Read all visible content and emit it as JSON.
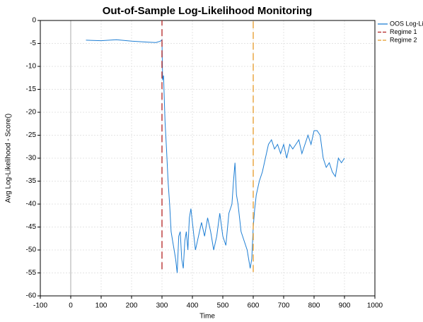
{
  "chart_data": {
    "type": "line",
    "title": "Out-of-Sample Log-Likelihood Monitoring",
    "xlabel": "Time",
    "ylabel": "Avg Log-Likelihood - Score()",
    "xlim": [
      -100,
      1000
    ],
    "xticks": [
      -100,
      0,
      100,
      200,
      300,
      400,
      500,
      600,
      700,
      800,
      900,
      1000
    ],
    "ylim": [
      -60,
      0
    ],
    "yticks": [
      0,
      -5,
      -10,
      -15,
      -20,
      -25,
      -30,
      -35,
      -40,
      -45,
      -50,
      -55,
      -60
    ],
    "grid": true,
    "legend": "outside-right",
    "series": [
      {
        "name": "OOS Log-Li",
        "color": "#1f7fd4",
        "dashed": false,
        "x": [
          50,
          100,
          150,
          200,
          250,
          280,
          295,
          300,
          302,
          305,
          310,
          315,
          320,
          325,
          330,
          335,
          340,
          345,
          350,
          355,
          360,
          365,
          370,
          375,
          380,
          385,
          390,
          395,
          400,
          410,
          420,
          430,
          440,
          450,
          460,
          470,
          480,
          490,
          500,
          510,
          520,
          530,
          535,
          540,
          545,
          550,
          560,
          570,
          580,
          590,
          595,
          600,
          605,
          610,
          620,
          630,
          640,
          650,
          660,
          670,
          680,
          690,
          700,
          710,
          720,
          730,
          740,
          750,
          760,
          770,
          780,
          790,
          800,
          810,
          820,
          830,
          840,
          850,
          860,
          870,
          880,
          890,
          900
        ],
        "values": [
          -4.3,
          -4.4,
          -4.2,
          -4.5,
          -4.7,
          -4.8,
          -4.5,
          -4.2,
          -13,
          -12,
          -22,
          -28,
          -35,
          -40,
          -46,
          -48,
          -50,
          -52,
          -55,
          -47,
          -46,
          -52,
          -54,
          -48,
          -46,
          -50,
          -43,
          -41,
          -44,
          -50,
          -47,
          -44,
          -47,
          -43,
          -46,
          -50,
          -47,
          -42,
          -47,
          -49,
          -42,
          -40,
          -35,
          -31,
          -38,
          -40,
          -46,
          -48,
          -50,
          -54,
          -52,
          -45,
          -41,
          -38,
          -35,
          -33,
          -30,
          -27,
          -26,
          -28,
          -27,
          -29,
          -27,
          -30,
          -27,
          -28,
          -27,
          -26,
          -29,
          -27,
          -25,
          -27,
          -24,
          -24,
          -25,
          -30,
          -32,
          -31,
          -33,
          -34,
          -30,
          -31,
          -30
        ]
      },
      {
        "name": "Regime 1",
        "color": "#b22222",
        "dashed": true,
        "x": [
          300,
          300
        ],
        "values": [
          -54.2,
          0
        ]
      },
      {
        "name": "Regime 2",
        "color": "#e69a28",
        "dashed": true,
        "x": [
          600,
          600
        ],
        "values": [
          -54.8,
          0
        ]
      }
    ]
  }
}
